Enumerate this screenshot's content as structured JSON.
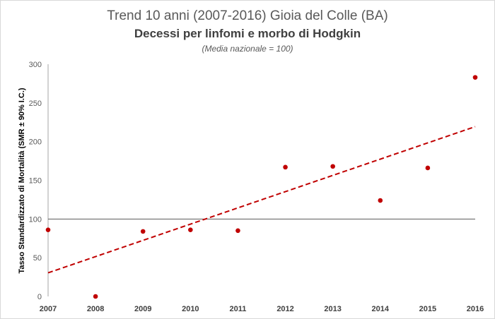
{
  "chart_data": {
    "type": "scatter",
    "title": "Trend 10 anni (2007-2016) Gioia del Colle (BA)",
    "subtitle": "Decessi per linfomi e morbo di Hodgkin",
    "note": "(Media nazionale = 100)",
    "ylabel": "Tasso Standardizzato di Mortalità (SMR ± 90% I.C.)",
    "xlabel": "",
    "x": [
      2007,
      2008,
      2009,
      2010,
      2011,
      2012,
      2013,
      2014,
      2015,
      2016
    ],
    "series": [
      {
        "values": [
          86,
          0,
          84,
          86,
          85,
          167,
          168,
          124,
          166,
          283
        ]
      }
    ],
    "reference_line": {
      "value": 100
    },
    "trendline": {
      "type": "linear",
      "style": "dashed"
    },
    "ylim": [
      0,
      300
    ],
    "yticks": [
      0,
      50,
      100,
      150,
      200,
      250,
      300
    ],
    "grid": false,
    "legend": "none",
    "colors": {
      "points": "#c00000",
      "trend": "#c00000",
      "reference": "#595959",
      "axis": "#a6a6a6"
    }
  }
}
